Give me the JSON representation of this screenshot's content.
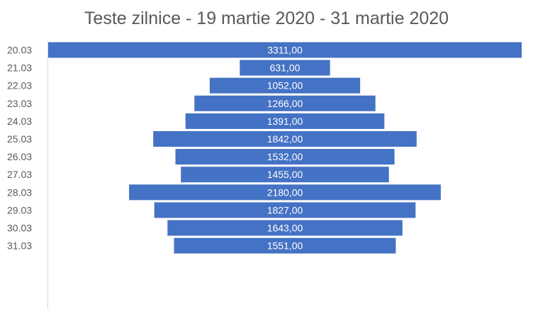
{
  "chart_data": {
    "type": "bar",
    "orientation": "horizontal",
    "title": "Teste zilnice - 19 martie 2020 - 31 martie 2020",
    "xlabel": "",
    "ylabel": "",
    "categories": [
      "20.03",
      "21.03",
      "22.03",
      "23.03",
      "24.03",
      "25.03",
      "26.03",
      "27.03",
      "28.03",
      "29.03",
      "30.03",
      "31.03"
    ],
    "values": [
      3311,
      631,
      1052,
      1266,
      1391,
      1842,
      1532,
      1455,
      2180,
      1827,
      1643,
      1551
    ],
    "value_labels": [
      "3311,00",
      "631,00",
      "1052,00",
      "1266,00",
      "1391,00",
      "1842,00",
      "1532,00",
      "1455,00",
      "2180,00",
      "1827,00",
      "1643,00",
      "1551,00"
    ],
    "bar_alignment": "centered",
    "bar_color": "#4472C4",
    "label_color": "#FFFFFF",
    "grid": false,
    "legend": false
  }
}
